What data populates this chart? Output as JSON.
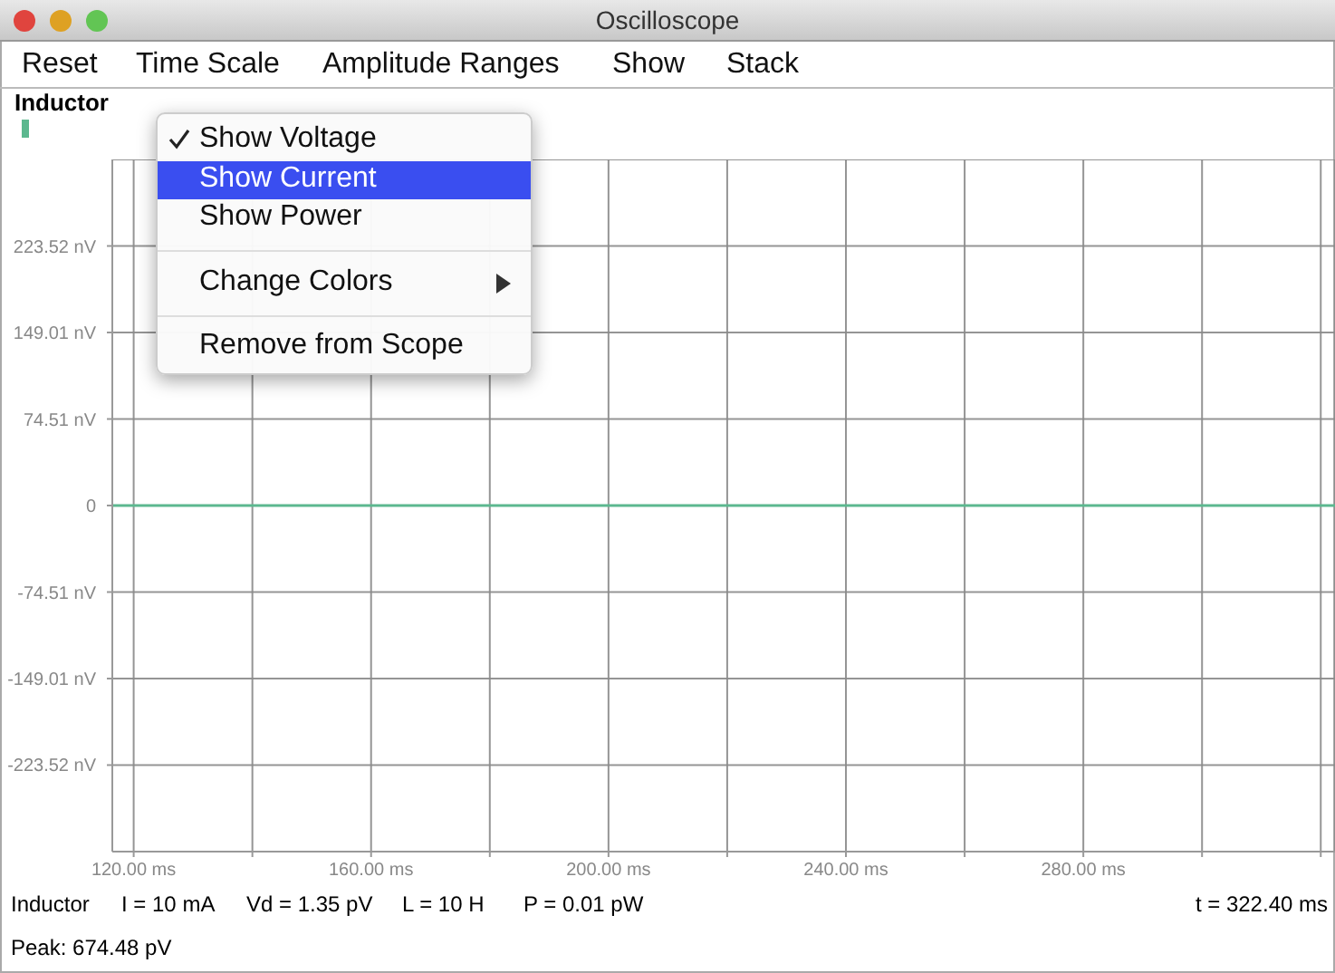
{
  "chart_data": {
    "type": "line",
    "title": "Oscilloscope",
    "series": [
      {
        "name": "Inductor",
        "color": "#5cb88f",
        "x": [
          116.4,
          322.4
        ],
        "values": [
          0,
          0
        ]
      }
    ],
    "xlim": [
      116.4,
      322.4
    ],
    "xticks": [
      {
        "value": 120,
        "label": "120.00 ms"
      },
      {
        "value": 140,
        "label": null
      },
      {
        "value": 160,
        "label": "160.00 ms"
      },
      {
        "value": 180,
        "label": null
      },
      {
        "value": 200,
        "label": "200.00 ms"
      },
      {
        "value": 220,
        "label": null
      },
      {
        "value": 240,
        "label": "240.00 ms"
      },
      {
        "value": 260,
        "label": null
      },
      {
        "value": 280,
        "label": "280.00 ms"
      },
      {
        "value": 300,
        "label": null
      },
      {
        "value": 320,
        "label": null
      }
    ],
    "ylim": [
      -298.04,
      298.04
    ],
    "yticks": [
      {
        "value": -223.52,
        "label": "-223.52 nV"
      },
      {
        "value": -149.01,
        "label": "-149.01 nV"
      },
      {
        "value": -74.51,
        "label": "-74.51 nV"
      },
      0,
      {
        "value": 74.51,
        "label": "74.51 nV"
      },
      {
        "value": 149.01,
        "label": "149.01 nV"
      },
      {
        "value": 223.52,
        "label": "223.52 nV"
      }
    ],
    "grid": true,
    "legend": "top left",
    "annotations": [
      "Reset",
      "Time Scale",
      "Amplitude Ranges",
      "Show",
      "Stack",
      "Show Voltage",
      "Show Current",
      "Show Power",
      "Change Colors",
      "Remove from Scope",
      "Inductor",
      "I = 10 mA",
      "Vd = 1.35 pV",
      "L = 10 H",
      "P = 0.01 pW",
      "t = 322.40 ms",
      "Peak: 674.48 pV"
    ]
  }
}
